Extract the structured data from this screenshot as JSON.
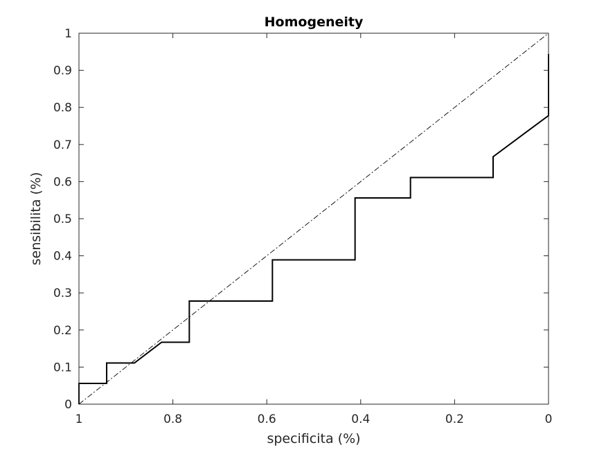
{
  "chart_data": {
    "type": "line",
    "title": "Homogeneity",
    "xlabel": "specificita (%)",
    "ylabel": "sensibilita (%)",
    "xlim": [
      1,
      0
    ],
    "ylim": [
      0,
      1
    ],
    "x_reversed": true,
    "grid": false,
    "xticks": [
      1,
      0.8,
      0.6,
      0.4,
      0.2,
      0
    ],
    "xtick_labels": [
      "1",
      "0.8",
      "0.6",
      "0.4",
      "0.2",
      "0"
    ],
    "yticks": [
      0,
      0.1,
      0.2,
      0.3,
      0.4,
      0.5,
      0.6,
      0.7,
      0.8,
      0.9,
      1
    ],
    "ytick_labels": [
      "0",
      "0.1",
      "0.2",
      "0.3",
      "0.4",
      "0.5",
      "0.6",
      "0.7",
      "0.8",
      "0.9",
      "1"
    ],
    "series": [
      {
        "style": "solid",
        "color": "#000000",
        "x": [
          1,
          1,
          0.941,
          0.941,
          0.882,
          0.824,
          0.765,
          0.765,
          0.588,
          0.588,
          0.412,
          0.412,
          0.294,
          0.294,
          0.118,
          0.118,
          0,
          0,
          0
        ],
        "y": [
          0,
          0.056,
          0.056,
          0.111,
          0.111,
          0.167,
          0.167,
          0.278,
          0.278,
          0.389,
          0.389,
          0.556,
          0.556,
          0.611,
          0.611,
          0.667,
          0.778,
          0.944,
          0.944
        ]
      },
      {
        "style": "dashdot",
        "color": "#000000",
        "x": [
          1,
          0
        ],
        "y": [
          0,
          1
        ]
      }
    ]
  }
}
